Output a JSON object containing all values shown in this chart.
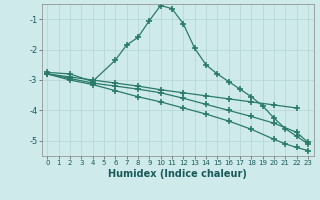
{
  "xlabel": "Humidex (Indice chaleur)",
  "bg_color": "#ceeaea",
  "grid_color": "#b8d8d8",
  "line_color": "#2a7a6a",
  "xlim": [
    -0.5,
    23.5
  ],
  "ylim": [
    -5.5,
    -0.5
  ],
  "yticks": [
    -5,
    -4,
    -3,
    -2,
    -1
  ],
  "xticks": [
    0,
    1,
    2,
    3,
    4,
    5,
    6,
    7,
    8,
    9,
    10,
    11,
    12,
    13,
    14,
    15,
    16,
    17,
    18,
    19,
    20,
    21,
    22,
    23
  ],
  "series": [
    {
      "x": [
        0,
        2,
        4,
        6,
        7,
        8,
        9,
        10,
        11,
        12,
        13,
        14,
        15,
        16,
        17,
        18,
        19,
        20,
        21,
        22,
        23
      ],
      "y": [
        -2.75,
        -2.8,
        -3.05,
        -2.35,
        -1.85,
        -1.6,
        -1.05,
        -0.55,
        -0.65,
        -1.15,
        -1.95,
        -2.5,
        -2.8,
        -3.05,
        -3.3,
        -3.55,
        -3.85,
        -4.25,
        -4.6,
        -4.85,
        -5.1
      ]
    },
    {
      "x": [
        0,
        2,
        4,
        6,
        8,
        10,
        12,
        14,
        16,
        18,
        20,
        22
      ],
      "y": [
        -2.8,
        -2.9,
        -3.0,
        -3.1,
        -3.2,
        -3.32,
        -3.42,
        -3.52,
        -3.62,
        -3.72,
        -3.82,
        -3.92
      ]
    },
    {
      "x": [
        0,
        2,
        4,
        6,
        8,
        10,
        12,
        14,
        16,
        18,
        20,
        22,
        23
      ],
      "y": [
        -2.8,
        -2.95,
        -3.1,
        -3.2,
        -3.3,
        -3.42,
        -3.6,
        -3.8,
        -4.0,
        -4.2,
        -4.42,
        -4.72,
        -5.05
      ]
    },
    {
      "x": [
        0,
        2,
        4,
        6,
        8,
        10,
        12,
        14,
        16,
        18,
        20,
        21,
        22,
        23
      ],
      "y": [
        -2.8,
        -3.0,
        -3.15,
        -3.35,
        -3.55,
        -3.72,
        -3.92,
        -4.12,
        -4.35,
        -4.62,
        -4.95,
        -5.1,
        -5.22,
        -5.32
      ]
    }
  ]
}
